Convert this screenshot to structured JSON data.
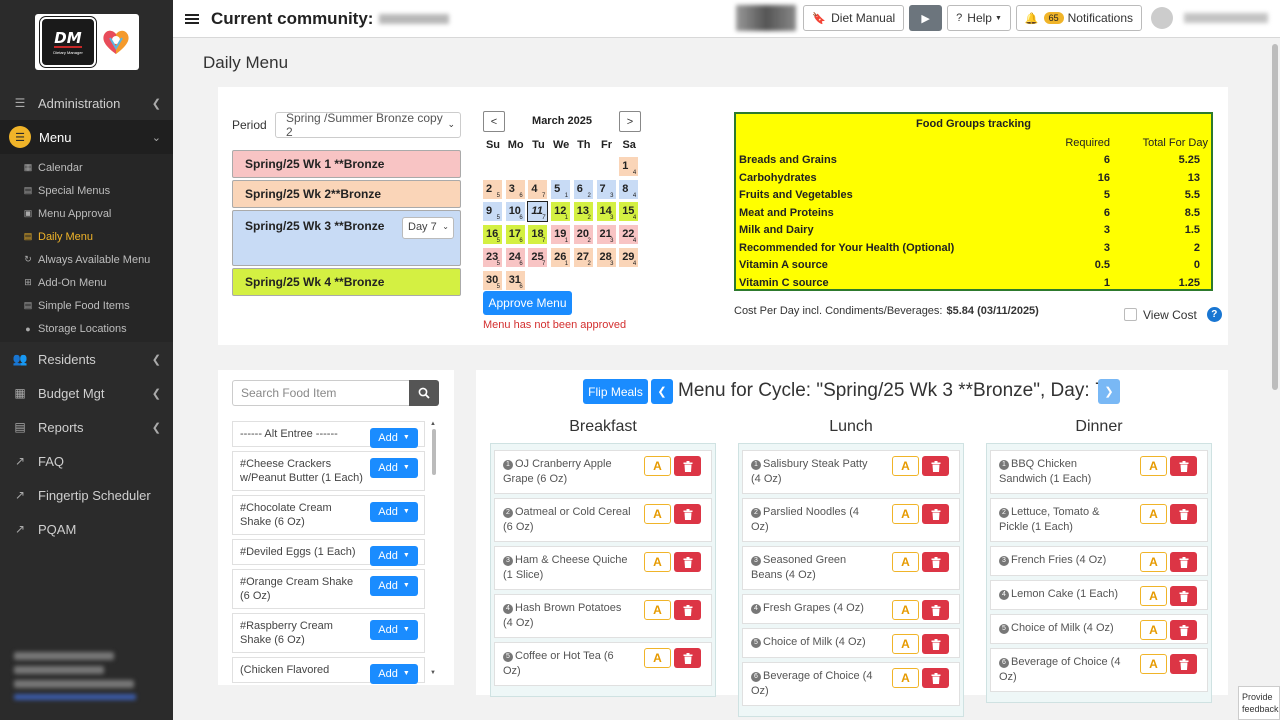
{
  "sidebar": {
    "logo": {
      "text": "DM",
      "subtext": "Dietary Manager"
    },
    "items": [
      {
        "label": "Administration"
      },
      {
        "label": "Menu"
      },
      {
        "label": "Residents"
      },
      {
        "label": "Budget Mgt"
      },
      {
        "label": "Reports"
      },
      {
        "label": "FAQ"
      },
      {
        "label": "Fingertip Scheduler"
      },
      {
        "label": "PQAM"
      }
    ],
    "submenu": [
      {
        "label": "Calendar"
      },
      {
        "label": "Special Menus"
      },
      {
        "label": "Menu Approval"
      },
      {
        "label": "Daily Menu"
      },
      {
        "label": "Always Available Menu"
      },
      {
        "label": "Add-On Menu"
      },
      {
        "label": "Simple Food Items"
      },
      {
        "label": "Storage Locations"
      }
    ]
  },
  "topbar": {
    "title": "Current community:",
    "diet_manual": "Diet Manual",
    "help": "Help",
    "notifications_count": "65",
    "notifications": "Notifications"
  },
  "page": {
    "title": "Daily Menu"
  },
  "period": {
    "label": "Period",
    "selected": "Spring /Summer Bronze copy 2",
    "weeks": [
      {
        "label": "Spring/25 Wk 1 **Bronze",
        "color": "#f8c4c4"
      },
      {
        "label": "Spring/25 Wk 2**Bronze",
        "color": "#fad5b8"
      },
      {
        "label": "Spring/25 Wk 3 **Bronze",
        "color": "#c8dbf5"
      },
      {
        "label": "Spring/25 Wk 4 **Bronze",
        "color": "#d4f042"
      }
    ],
    "day_selected": "Day 7"
  },
  "calendar": {
    "month": "March 2025",
    "prev": "<",
    "next": ">",
    "weekdays": [
      "Su",
      "Mo",
      "Tu",
      "We",
      "Th",
      "Fr",
      "Sa"
    ],
    "days": [
      {
        "d": "1",
        "s": "4",
        "c": "#fad5b8"
      },
      {
        "d": "2",
        "s": "5",
        "c": "#fad5b8"
      },
      {
        "d": "3",
        "s": "6",
        "c": "#fad5b8"
      },
      {
        "d": "4",
        "s": "7",
        "c": "#fad5b8"
      },
      {
        "d": "5",
        "s": "1",
        "c": "#c8dbf5"
      },
      {
        "d": "6",
        "s": "2",
        "c": "#c8dbf5"
      },
      {
        "d": "7",
        "s": "3",
        "c": "#c8dbf5"
      },
      {
        "d": "8",
        "s": "4",
        "c": "#c8dbf5"
      },
      {
        "d": "9",
        "s": "5",
        "c": "#c8dbf5"
      },
      {
        "d": "10",
        "s": "6",
        "c": "#c8dbf5"
      },
      {
        "d": "11",
        "s": "7",
        "c": "#c8dbf5",
        "today": true
      },
      {
        "d": "12",
        "s": "1",
        "c": "#d4f042"
      },
      {
        "d": "13",
        "s": "2",
        "c": "#d4f042"
      },
      {
        "d": "14",
        "s": "3",
        "c": "#d4f042"
      },
      {
        "d": "15",
        "s": "4",
        "c": "#d4f042"
      },
      {
        "d": "16",
        "s": "5",
        "c": "#d4f042"
      },
      {
        "d": "17",
        "s": "6",
        "c": "#d4f042"
      },
      {
        "d": "18",
        "s": "7",
        "c": "#d4f042"
      },
      {
        "d": "19",
        "s": "1",
        "c": "#f8c4c4"
      },
      {
        "d": "20",
        "s": "2",
        "c": "#f8c4c4"
      },
      {
        "d": "21",
        "s": "3",
        "c": "#f8c4c4"
      },
      {
        "d": "22",
        "s": "4",
        "c": "#f8c4c4"
      },
      {
        "d": "23",
        "s": "5",
        "c": "#f8c4c4"
      },
      {
        "d": "24",
        "s": "6",
        "c": "#f8c4c4"
      },
      {
        "d": "25",
        "s": "7",
        "c": "#f8c4c4"
      },
      {
        "d": "26",
        "s": "1",
        "c": "#fad5b8"
      },
      {
        "d": "27",
        "s": "2",
        "c": "#fad5b8"
      },
      {
        "d": "28",
        "s": "3",
        "c": "#fad5b8"
      },
      {
        "d": "29",
        "s": "4",
        "c": "#fad5b8"
      },
      {
        "d": "30",
        "s": "5",
        "c": "#fad5b8"
      },
      {
        "d": "31",
        "s": "6",
        "c": "#fad5b8"
      }
    ],
    "approve_label": "Approve Menu",
    "approve_note": "Menu has not been approved"
  },
  "food_groups": {
    "title": "Food Groups tracking",
    "col_required": "Required",
    "col_total": "Total For Day",
    "rows": [
      {
        "name": "Breads and Grains",
        "required": "6",
        "total": "5.25"
      },
      {
        "name": "Carbohydrates",
        "required": "16",
        "total": "13"
      },
      {
        "name": "Fruits and Vegetables",
        "required": "5",
        "total": "5.5"
      },
      {
        "name": "Meat and Proteins",
        "required": "6",
        "total": "8.5"
      },
      {
        "name": "Milk and Dairy",
        "required": "3",
        "total": "1.5"
      },
      {
        "name": "Recommended for Your Health (Optional)",
        "required": "3",
        "total": "2"
      },
      {
        "name": "Vitamin A source",
        "required": "0.5",
        "total": "0"
      },
      {
        "name": "Vitamin C source",
        "required": "1",
        "total": "1.25"
      }
    ]
  },
  "cost": {
    "label": "Cost Per Day incl. Condiments/Beverages:",
    "value": "$5.84 (03/11/2025)",
    "view_cost": "View Cost",
    "help": "?"
  },
  "food_search": {
    "placeholder": "Search Food Item",
    "add_label": "Add",
    "items": [
      "------ Alt Entree ------",
      "#Cheese Crackers w/Peanut Butter (1 Each)",
      "#Chocolate Cream Shake (6 Oz)",
      "#Deviled Eggs (1 Each)",
      "#Orange Cream Shake (6 Oz)",
      "#Raspberry Cream Shake (6 Oz)",
      "(Chicken Flavored"
    ]
  },
  "menu": {
    "flip_label": "Flip Meals",
    "title": "Menu for Cycle: \"Spring/25 Wk 3 **Bronze\", Day: 7",
    "a_label": "A",
    "meals": [
      {
        "name": "Breakfast",
        "items": [
          {
            "n": "1",
            "label": "OJ Cranberry Apple Grape (6 Oz)"
          },
          {
            "n": "2",
            "label": "Oatmeal or Cold Cereal (6 Oz)"
          },
          {
            "n": "3",
            "label": "Ham & Cheese Quiche (1 Slice)"
          },
          {
            "n": "4",
            "label": "Hash Brown Potatoes (4 Oz)"
          },
          {
            "n": "5",
            "label": "Coffee or Hot Tea (6 Oz)"
          }
        ]
      },
      {
        "name": "Lunch",
        "items": [
          {
            "n": "1",
            "label": "Salisbury Steak Patty (4 Oz)"
          },
          {
            "n": "2",
            "label": "Parslied Noodles (4 Oz)"
          },
          {
            "n": "3",
            "label": "Seasoned Green Beans (4 Oz)"
          },
          {
            "n": "4",
            "label": "Fresh Grapes (4 Oz)"
          },
          {
            "n": "5",
            "label": "Choice of Milk (4 Oz)"
          },
          {
            "n": "6",
            "label": "Beverage of Choice (4 Oz)"
          }
        ]
      },
      {
        "name": "Dinner",
        "items": [
          {
            "n": "1",
            "label": "BBQ Chicken Sandwich (1 Each)"
          },
          {
            "n": "2",
            "label": "Lettuce, Tomato & Pickle (1 Each)"
          },
          {
            "n": "3",
            "label": "French Fries (4 Oz)"
          },
          {
            "n": "4",
            "label": "Lemon Cake (1 Each)"
          },
          {
            "n": "5",
            "label": "Choice of Milk (4 Oz)"
          },
          {
            "n": "6",
            "label": "Beverage of Choice (4 Oz)"
          }
        ]
      }
    ]
  },
  "feedback": {
    "label": "Provide feedback"
  }
}
